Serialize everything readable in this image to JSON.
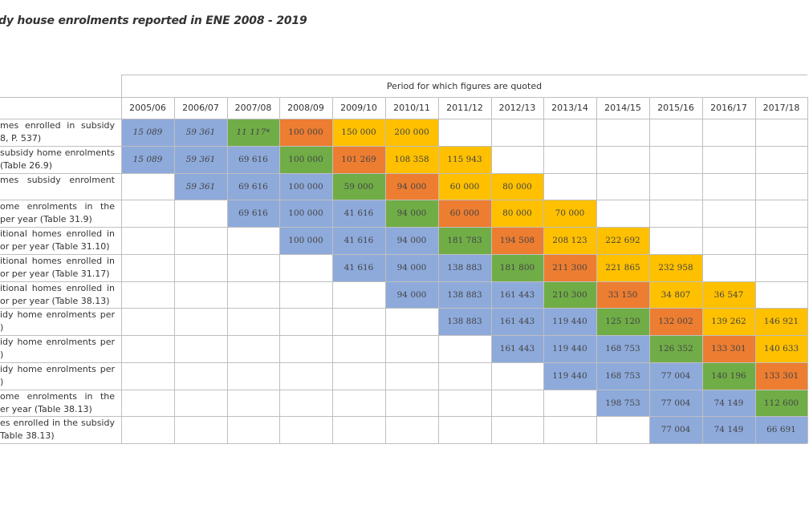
{
  "title": "dy house enrolments reported in ENE 2008 - 2019",
  "period_header": "Period for which figures are quoted",
  "years": [
    "2005/06",
    "2006/07",
    "2007/08",
    "2008/09",
    "2009/10",
    "2010/11",
    "2011/12",
    "2012/13",
    "2013/14",
    "2014/15",
    "2015/16",
    "2016/17",
    "2017/18"
  ],
  "colors": {
    "blue": "#8eaadb",
    "green": "#70ad47",
    "orange": "#ed7d31",
    "yellow": "#ffc000",
    "grid": "#bfbfbf"
  },
  "rows": [
    {
      "label1": "mes enrolled in subsidy",
      "label2": "8, P. 537)",
      "cells": [
        {
          "c": 0,
          "v": "15 089",
          "col": "blue",
          "i": true
        },
        {
          "c": 1,
          "v": "59 361",
          "col": "blue",
          "i": true
        },
        {
          "c": 2,
          "v": "11 117*",
          "col": "green",
          "i": true
        },
        {
          "c": 3,
          "v": "100 000",
          "col": "orange"
        },
        {
          "c": 4,
          "v": "150 000",
          "col": "yellow"
        },
        {
          "c": 5,
          "v": "200 000",
          "col": "yellow"
        }
      ]
    },
    {
      "label1": "subsidy home enrolments",
      "label2": "(Table 26.9)",
      "cells": [
        {
          "c": 0,
          "v": "15 089",
          "col": "blue",
          "i": true
        },
        {
          "c": 1,
          "v": "59 361",
          "col": "blue",
          "i": true
        },
        {
          "c": 2,
          "v": "69 616",
          "col": "blue"
        },
        {
          "c": 3,
          "v": "100 000",
          "col": "green"
        },
        {
          "c": 4,
          "v": "101 269",
          "col": "orange"
        },
        {
          "c": 5,
          "v": "108 358",
          "col": "yellow"
        },
        {
          "c": 6,
          "v": "115 943",
          "col": "yellow"
        }
      ]
    },
    {
      "label1": "mes subsidy enrolment",
      "label2": "",
      "cells": [
        {
          "c": 1,
          "v": "59 361",
          "col": "blue",
          "i": true
        },
        {
          "c": 2,
          "v": "69 616",
          "col": "blue"
        },
        {
          "c": 3,
          "v": "100 000",
          "col": "blue"
        },
        {
          "c": 4,
          "v": "59 000",
          "col": "green"
        },
        {
          "c": 5,
          "v": "94 000",
          "col": "orange"
        },
        {
          "c": 6,
          "v": "60 000",
          "col": "yellow"
        },
        {
          "c": 7,
          "v": "80 000",
          "col": "yellow"
        }
      ]
    },
    {
      "label1": "ome enrolments in the",
      "label2": "per year (Table 31.9)",
      "cells": [
        {
          "c": 2,
          "v": "69 616",
          "col": "blue"
        },
        {
          "c": 3,
          "v": "100 000",
          "col": "blue"
        },
        {
          "c": 4,
          "v": "41 616",
          "col": "blue"
        },
        {
          "c": 5,
          "v": "94 000",
          "col": "green"
        },
        {
          "c": 6,
          "v": "60 000",
          "col": "orange"
        },
        {
          "c": 7,
          "v": "80 000",
          "col": "yellow"
        },
        {
          "c": 8,
          "v": "70 000",
          "col": "yellow"
        }
      ]
    },
    {
      "label1": "itional homes enrolled in",
      "label2": "or per year (Table 31.10)",
      "cells": [
        {
          "c": 3,
          "v": "100 000",
          "col": "blue"
        },
        {
          "c": 4,
          "v": "41 616",
          "col": "blue"
        },
        {
          "c": 5,
          "v": "94 000",
          "col": "blue"
        },
        {
          "c": 6,
          "v": "181 783",
          "col": "green"
        },
        {
          "c": 7,
          "v": "194 508",
          "col": "orange"
        },
        {
          "c": 8,
          "v": "208 123",
          "col": "yellow"
        },
        {
          "c": 9,
          "v": "222 692",
          "col": "yellow"
        }
      ]
    },
    {
      "label1": "itional homes enrolled in",
      "label2": "or per year (Table 31.17)",
      "cells": [
        {
          "c": 4,
          "v": "41 616",
          "col": "blue"
        },
        {
          "c": 5,
          "v": "94 000",
          "col": "blue"
        },
        {
          "c": 6,
          "v": "138 883",
          "col": "blue"
        },
        {
          "c": 7,
          "v": "181 800",
          "col": "green"
        },
        {
          "c": 8,
          "v": "211 300",
          "col": "orange"
        },
        {
          "c": 9,
          "v": "221 865",
          "col": "yellow"
        },
        {
          "c": 10,
          "v": "232 958",
          "col": "yellow"
        }
      ]
    },
    {
      "label1": "itional homes enrolled in",
      "label2": "or per year (Table 38.13)",
      "cells": [
        {
          "c": 5,
          "v": "94 000",
          "col": "blue"
        },
        {
          "c": 6,
          "v": "138 883",
          "col": "blue"
        },
        {
          "c": 7,
          "v": "161 443",
          "col": "blue"
        },
        {
          "c": 8,
          "v": "210 300",
          "col": "green"
        },
        {
          "c": 9,
          "v": "33 150",
          "col": "orange"
        },
        {
          "c": 10,
          "v": "34 807",
          "col": "yellow"
        },
        {
          "c": 11,
          "v": "36 547",
          "col": "yellow"
        }
      ]
    },
    {
      "label1": "idy home enrolments per",
      "label2": ")",
      "cells": [
        {
          "c": 6,
          "v": "138 883",
          "col": "blue"
        },
        {
          "c": 7,
          "v": "161 443",
          "col": "blue"
        },
        {
          "c": 8,
          "v": "119 440",
          "col": "blue"
        },
        {
          "c": 9,
          "v": "125 120",
          "col": "green"
        },
        {
          "c": 10,
          "v": "132 002",
          "col": "orange"
        },
        {
          "c": 11,
          "v": "139 262",
          "col": "yellow"
        },
        {
          "c": 12,
          "v": "146 921",
          "col": "yellow"
        }
      ]
    },
    {
      "label1": "idy home enrolments per",
      "label2": ")",
      "cells": [
        {
          "c": 7,
          "v": "161 443",
          "col": "blue"
        },
        {
          "c": 8,
          "v": "119 440",
          "col": "blue"
        },
        {
          "c": 9,
          "v": "168 753",
          "col": "blue"
        },
        {
          "c": 10,
          "v": "126 352",
          "col": "green"
        },
        {
          "c": 11,
          "v": "133 301",
          "col": "orange"
        },
        {
          "c": 12,
          "v": "140 633",
          "col": "yellow"
        }
      ]
    },
    {
      "label1": "idy home enrolments per",
      "label2": ")",
      "cells": [
        {
          "c": 8,
          "v": "119 440",
          "col": "blue"
        },
        {
          "c": 9,
          "v": "168 753",
          "col": "blue"
        },
        {
          "c": 10,
          "v": "77 004",
          "col": "blue"
        },
        {
          "c": 11,
          "v": "140 196",
          "col": "green"
        },
        {
          "c": 12,
          "v": "133 301",
          "col": "orange"
        }
      ]
    },
    {
      "label1": "ome enrolments in the",
      "label2": "er year (Table 38.13)",
      "cells": [
        {
          "c": 9,
          "v": "198 753",
          "col": "blue"
        },
        {
          "c": 10,
          "v": "77 004",
          "col": "blue"
        },
        {
          "c": 11,
          "v": "74 149",
          "col": "blue"
        },
        {
          "c": 12,
          "v": "112 600",
          "col": "green"
        }
      ]
    },
    {
      "label1": "es enrolled in the subsidy",
      "label2": "Table 38.13)",
      "cells": [
        {
          "c": 10,
          "v": "77 004",
          "col": "blue"
        },
        {
          "c": 11,
          "v": "74 149",
          "col": "blue"
        },
        {
          "c": 12,
          "v": "66 691",
          "col": "blue"
        }
      ]
    }
  ]
}
